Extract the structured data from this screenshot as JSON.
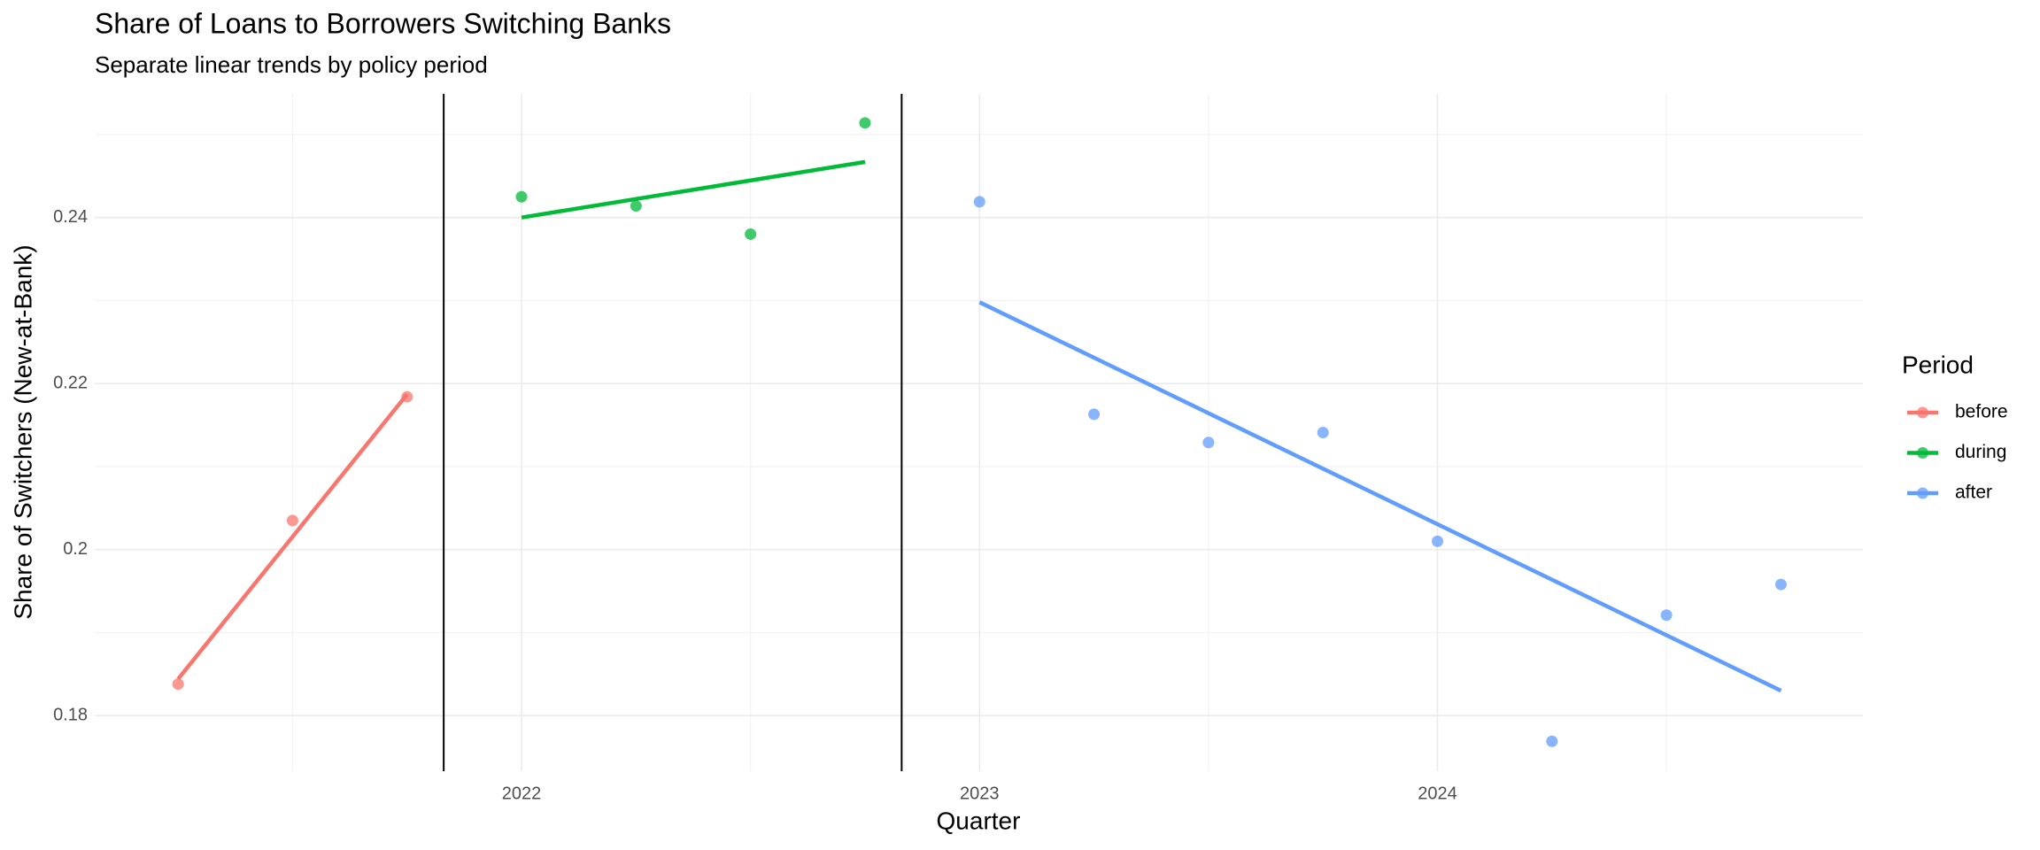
{
  "chart_data": {
    "type": "scatter",
    "title": "Share of Loans to Borrowers Switching Banks",
    "subtitle": "Separate linear trends by policy period",
    "x_label": "Quarter",
    "y_label": "Share of Switchers (New-at-Bank)",
    "legend_title": "Period",
    "legend_position": "right",
    "grid": true,
    "xlim": [
      2021.068,
      2024.929
    ],
    "ylim": [
      0.1733,
      0.2549
    ],
    "xticks": [
      2022,
      2023,
      2024
    ],
    "yticks": [
      0.18,
      0.2,
      0.22,
      0.24
    ],
    "vlines": [
      2021.83,
      2022.83
    ],
    "series": [
      {
        "name": "before",
        "color": "#F8766D",
        "x": [
          2021.25,
          2021.5,
          2021.75
        ],
        "values": [
          0.1838,
          0.2035,
          0.2184
        ],
        "trend": [
          0.1844,
          0.2187
        ]
      },
      {
        "name": "during",
        "color": "#00BA38",
        "x": [
          2022.0,
          2022.25,
          2022.5,
          2022.75
        ],
        "values": [
          0.2425,
          0.2414,
          0.238,
          0.2514
        ],
        "trend": [
          0.24,
          0.2467
        ]
      },
      {
        "name": "after",
        "color": "#619CFF",
        "x": [
          2023.0,
          2023.25,
          2023.5,
          2023.75,
          2024.0,
          2024.25,
          2024.5,
          2024.75
        ],
        "values": [
          0.2419,
          0.2163,
          0.2129,
          0.2141,
          0.201,
          0.1769,
          0.1921,
          0.1958
        ],
        "trend": [
          0.2298,
          0.183
        ]
      }
    ]
  }
}
